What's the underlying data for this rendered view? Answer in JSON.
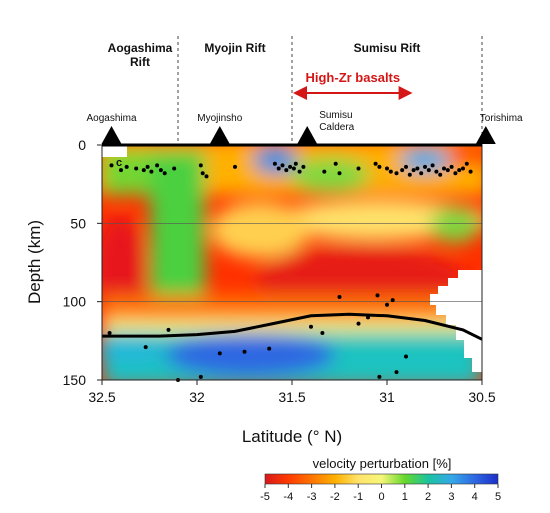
{
  "chart_data": {
    "type": "heatmap",
    "xlabel": "Latitude (° N)",
    "ylabel": "Depth (km)",
    "xlim": [
      32.5,
      30.5
    ],
    "ylim": [
      0,
      150
    ],
    "x_ticks": [
      "32.5",
      "32",
      "31.5",
      "31",
      "30.5"
    ],
    "y_ticks": [
      "0",
      "50",
      "100",
      "150"
    ],
    "grid": "horizontal lines at 50 and 100 km",
    "panel_label": "c",
    "regions": [
      {
        "name": "Aogashima\nRift",
        "lat_from": 32.5,
        "lat_to": 32.1
      },
      {
        "name": "Myojin Rift",
        "lat_from": 32.1,
        "lat_to": 31.5
      },
      {
        "name": "Sumisu Rift",
        "lat_from": 31.5,
        "lat_to": 30.5
      }
    ],
    "region_boundaries_lat": [
      32.1,
      31.5,
      30.5
    ],
    "volcanoes": [
      {
        "name": "Aogashima",
        "lat": 32.45
      },
      {
        "name": "Myojinsho",
        "lat": 31.88
      },
      {
        "name": "Sumisu\nCaldera",
        "lat": 31.42
      },
      {
        "name": "Torishima",
        "lat": 30.48
      }
    ],
    "annotation": {
      "text": "High-Zr basalts",
      "lat_from": 31.48,
      "lat_to": 30.88
    },
    "colorbar": {
      "title": "velocity perturbation [%]",
      "ticks": [
        "-5",
        "-4",
        "-3",
        "-2",
        "-1",
        "0",
        "1",
        "2",
        "3",
        "4",
        "5"
      ],
      "colors": [
        "#d7191c",
        "#ff3a00",
        "#ff7400",
        "#ffb000",
        "#ffe36a",
        "#f6f67a",
        "#66d82c",
        "#1bc3a0",
        "#35a9e8",
        "#2e68e2",
        "#1c2fc8"
      ]
    },
    "slab_surface": {
      "lat": [
        32.5,
        32.2,
        32.0,
        31.8,
        31.6,
        31.4,
        31.2,
        31.0,
        30.8,
        30.6,
        30.5
      ],
      "depth": [
        122,
        122,
        121,
        119,
        114,
        109,
        108,
        109,
        112,
        118,
        124
      ]
    },
    "earthquakes": [
      [
        32.45,
        13
      ],
      [
        32.4,
        16
      ],
      [
        32.37,
        14
      ],
      [
        32.32,
        15
      ],
      [
        32.28,
        16
      ],
      [
        32.26,
        14
      ],
      [
        32.24,
        17
      ],
      [
        32.21,
        13
      ],
      [
        32.19,
        16
      ],
      [
        32.17,
        18
      ],
      [
        32.12,
        15
      ],
      [
        31.98,
        13
      ],
      [
        31.97,
        18
      ],
      [
        31.95,
        20
      ],
      [
        31.8,
        14
      ],
      [
        31.59,
        12
      ],
      [
        31.57,
        15
      ],
      [
        31.55,
        13
      ],
      [
        31.53,
        16
      ],
      [
        31.51,
        14
      ],
      [
        31.49,
        15
      ],
      [
        31.48,
        12
      ],
      [
        31.46,
        17
      ],
      [
        31.44,
        14
      ],
      [
        31.06,
        12
      ],
      [
        31.04,
        14
      ],
      [
        31.0,
        15
      ],
      [
        30.98,
        17
      ],
      [
        30.95,
        18
      ],
      [
        30.92,
        16
      ],
      [
        30.9,
        14
      ],
      [
        30.88,
        19
      ],
      [
        30.86,
        16
      ],
      [
        30.84,
        15
      ],
      [
        30.82,
        18
      ],
      [
        30.8,
        14
      ],
      [
        30.78,
        16
      ],
      [
        30.76,
        13
      ],
      [
        30.74,
        17
      ],
      [
        30.72,
        19
      ],
      [
        30.7,
        15
      ],
      [
        30.68,
        16
      ],
      [
        30.66,
        14
      ],
      [
        30.64,
        18
      ],
      [
        30.62,
        16
      ],
      [
        30.6,
        15
      ],
      [
        30.58,
        12
      ],
      [
        30.56,
        17
      ],
      [
        31.15,
        15
      ],
      [
        31.25,
        18
      ],
      [
        31.27,
        12
      ],
      [
        31.33,
        17
      ],
      [
        32.46,
        120
      ],
      [
        32.27,
        129
      ],
      [
        32.15,
        118
      ],
      [
        31.98,
        148
      ],
      [
        31.88,
        133
      ],
      [
        31.75,
        132
      ],
      [
        31.62,
        130
      ],
      [
        31.4,
        116
      ],
      [
        31.34,
        120
      ],
      [
        31.25,
        97
      ],
      [
        31.15,
        114
      ],
      [
        31.1,
        110
      ],
      [
        31.05,
        96
      ],
      [
        31.0,
        102
      ],
      [
        30.97,
        99
      ],
      [
        30.95,
        145
      ],
      [
        30.9,
        135
      ],
      [
        31.04,
        148
      ],
      [
        32.1,
        150
      ]
    ]
  }
}
